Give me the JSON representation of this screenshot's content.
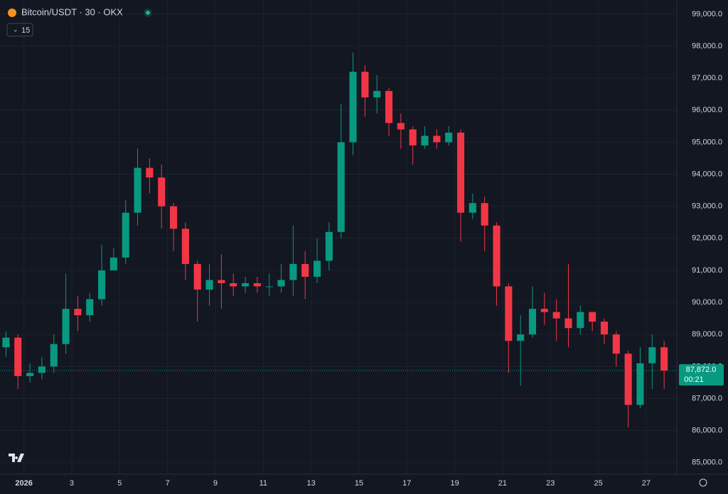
{
  "header": {
    "symbol": "Bitcoin/USDT · 30 · OKX",
    "interval_box": "15"
  },
  "chart_data": {
    "type": "candlestick",
    "up_color": "#089981",
    "down_color": "#f23645",
    "grid": true,
    "x": [
      0,
      0.5,
      1,
      1.5,
      2,
      2.5,
      3,
      3.5,
      4,
      4.5,
      5,
      5.5,
      6,
      6.5,
      7,
      7.5,
      8,
      8.5,
      9,
      9.5,
      10,
      10.5,
      11,
      11.5,
      12,
      12.5,
      13,
      13.5,
      14,
      14.5,
      15,
      15.5,
      16,
      16.5,
      17,
      17.5,
      18,
      18.5,
      19,
      19.5,
      20,
      20.5,
      21,
      21.5,
      22,
      22.5,
      23,
      23.5,
      24,
      24.5,
      25,
      25.5,
      26,
      26.5,
      27,
      27.5
    ],
    "open": [
      88600,
      88900,
      87700,
      87800,
      88000,
      88700,
      89800,
      89600,
      90100,
      91000,
      91400,
      92800,
      94200,
      93900,
      93000,
      92300,
      91200,
      90400,
      90700,
      90600,
      90500,
      90600,
      90500,
      90500,
      90700,
      91200,
      90800,
      91300,
      92200,
      95000,
      97200,
      96400,
      96600,
      95600,
      95400,
      94900,
      95200,
      95000,
      95300,
      92800,
      93100,
      92400,
      90500,
      88800,
      89000,
      89800,
      89700,
      89500,
      89200,
      89700,
      89400,
      89000,
      88400,
      86800,
      88100,
      88600
    ],
    "high": [
      89100,
      89000,
      88100,
      88300,
      89000,
      90900,
      90200,
      90300,
      91800,
      91700,
      93200,
      94800,
      94500,
      94300,
      93100,
      92500,
      91300,
      91200,
      91500,
      90900,
      90800,
      90800,
      90900,
      91200,
      92400,
      91600,
      92000,
      92500,
      96200,
      97800,
      97400,
      97100,
      96700,
      95900,
      95500,
      95500,
      95400,
      95500,
      95400,
      93400,
      93300,
      92500,
      90600,
      89600,
      90500,
      90300,
      90100,
      91200,
      89900,
      89700,
      89500,
      89100,
      88500,
      88600,
      89000,
      88800
    ],
    "low": [
      88300,
      87300,
      87500,
      87600,
      87800,
      88400,
      89100,
      89400,
      89900,
      91000,
      91200,
      92400,
      93400,
      92300,
      91600,
      90700,
      89400,
      89900,
      89800,
      90200,
      90300,
      90300,
      90200,
      90300,
      90200,
      90100,
      90600,
      91000,
      92000,
      94600,
      95800,
      95900,
      95200,
      94800,
      94300,
      94800,
      94800,
      94900,
      91900,
      92600,
      91600,
      89900,
      87800,
      87400,
      88900,
      89300,
      88800,
      88600,
      89000,
      89100,
      88700,
      88000,
      86100,
      86700,
      87300,
      87300
    ],
    "close": [
      88900,
      87700,
      87800,
      88000,
      88700,
      89800,
      89600,
      90100,
      91000,
      91400,
      92800,
      94200,
      93900,
      93000,
      92300,
      91200,
      90400,
      90700,
      90600,
      90500,
      90600,
      90500,
      90500,
      90700,
      91200,
      90800,
      91300,
      92200,
      95000,
      97200,
      96400,
      96600,
      95600,
      95400,
      94900,
      95200,
      95000,
      95300,
      92800,
      93100,
      92400,
      90500,
      88800,
      89000,
      89800,
      89700,
      89500,
      89200,
      89700,
      89400,
      89000,
      88400,
      86800,
      88100,
      88600,
      87872
    ],
    "xlim": [
      0,
      28.28
    ],
    "xticks": [
      {
        "value": 1,
        "label": "2026"
      },
      3,
      5,
      7,
      9,
      11,
      13,
      15,
      17,
      19,
      21,
      23,
      25,
      27
    ],
    "ylim": [
      84640,
      99440
    ],
    "yticks": [
      {
        "value": 85000,
        "label": "85,000.0"
      },
      {
        "value": 86000,
        "label": "86,000.0"
      },
      {
        "value": 87000,
        "label": "87,000.0"
      },
      {
        "value": 88000,
        "label": "88,000.0"
      },
      {
        "value": 89000,
        "label": "89,000.0"
      },
      {
        "value": 90000,
        "label": "90,000.0"
      },
      {
        "value": 91000,
        "label": "91,000.0"
      },
      {
        "value": 92000,
        "label": "92,000.0"
      },
      {
        "value": 93000,
        "label": "93,000.0"
      },
      {
        "value": 94000,
        "label": "94,000.0"
      },
      {
        "value": 95000,
        "label": "95,000.0"
      },
      {
        "value": 96000,
        "label": "96,000.0"
      },
      {
        "value": 97000,
        "label": "97,000.0"
      },
      {
        "value": 98000,
        "label": "98,000.0"
      },
      {
        "value": 99000,
        "label": "99,000.0"
      }
    ],
    "last_price": {
      "value": 87872,
      "label": "87,872.0"
    },
    "countdown": "00:21"
  }
}
